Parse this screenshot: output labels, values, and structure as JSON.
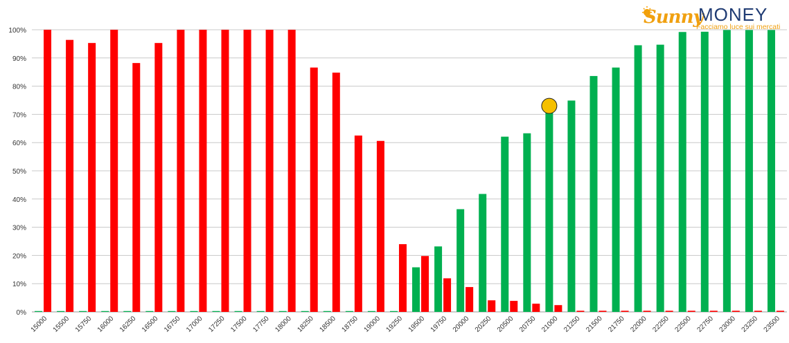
{
  "logo": {
    "brand_part1": "Sunny",
    "brand_part2": "MONEY",
    "tagline": "Facciamo luce sui mercati"
  },
  "colors": {
    "green": "#00b050",
    "red": "#ff0000",
    "marker": "#f5c000",
    "grid": "#c8c8c8"
  },
  "chart_data": {
    "type": "bar",
    "title": "",
    "xlabel": "",
    "ylabel": "",
    "ylim": [
      0,
      100
    ],
    "yticks": [
      "0%",
      "10%",
      "20%",
      "30%",
      "40%",
      "50%",
      "60%",
      "70%",
      "80%",
      "90%",
      "100%"
    ],
    "grid": true,
    "categories": [
      "15000",
      "15500",
      "15750",
      "16000",
      "16250",
      "16500",
      "16750",
      "17000",
      "17250",
      "17500",
      "17750",
      "18000",
      "18250",
      "18500",
      "18750",
      "19000",
      "19250",
      "19500",
      "19750",
      "20000",
      "20250",
      "20500",
      "20750",
      "21000",
      "21250",
      "21500",
      "21750",
      "22000",
      "22250",
      "22500",
      "22750",
      "23000",
      "23250",
      "23500"
    ],
    "series": [
      {
        "color": "green",
        "values": [
          0.3,
          0.3,
          0.3,
          0.3,
          0.3,
          0.3,
          0.3,
          0.3,
          0.3,
          0.3,
          0.3,
          0.3,
          0.3,
          0.3,
          0.3,
          0.3,
          0.3,
          15.8,
          23.2,
          36.4,
          41.8,
          62.1,
          63.3,
          72.7,
          74.9,
          83.6,
          86.6,
          94.5,
          94.7,
          99.2,
          99.3,
          99.9,
          99.9,
          99.9
        ]
      },
      {
        "color": "red",
        "values": [
          100,
          96.4,
          95.3,
          100,
          88.2,
          95.3,
          100,
          100,
          100,
          100,
          100,
          100,
          86.6,
          84.8,
          62.5,
          60.6,
          24.0,
          19.8,
          11.9,
          8.8,
          4.1,
          3.9,
          2.9,
          2.4,
          0.4,
          0.4,
          0.4,
          0.4,
          0.4,
          0.4,
          0.4,
          0.4,
          0.4,
          0.4
        ]
      }
    ],
    "marker": {
      "category": "21000",
      "value": 73
    }
  }
}
